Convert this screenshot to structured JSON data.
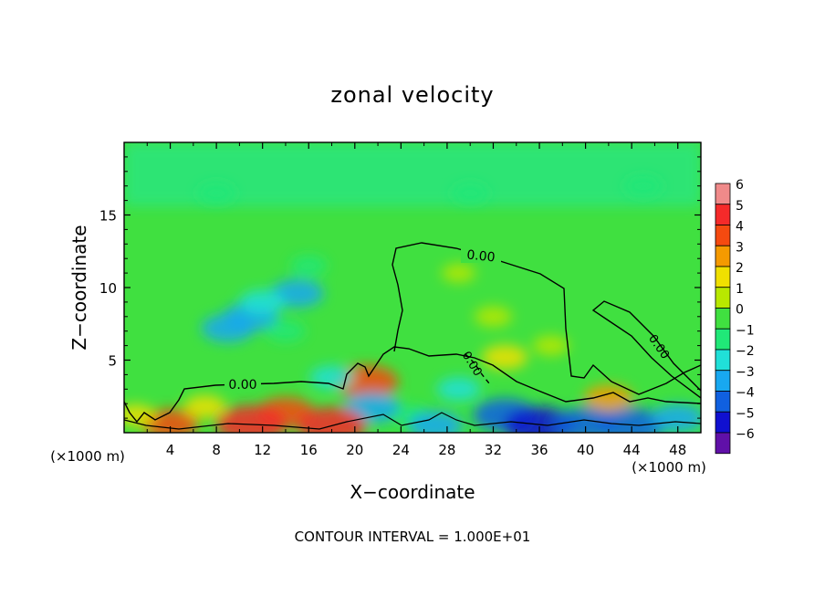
{
  "chart_data": {
    "type": "heatmap",
    "title": "zonal velocity",
    "xlabel": "X−coordinate",
    "ylabel": "Z−coordinate",
    "x_unit_left": "(×1000 m)",
    "x_unit_right": "(×1000 m)",
    "xlim": [
      0,
      50
    ],
    "ylim": [
      0,
      20
    ],
    "x_ticks": [
      4,
      8,
      12,
      16,
      20,
      24,
      28,
      32,
      36,
      40,
      44,
      48
    ],
    "x_tick_labels": [
      "4",
      "8",
      "12",
      "16",
      "20",
      "24",
      "28",
      "32",
      "36",
      "40",
      "44",
      "48"
    ],
    "y_ticks": [
      5,
      10,
      15
    ],
    "y_tick_labels": [
      "5",
      "10",
      "15"
    ],
    "colorbar": {
      "levels": [
        6,
        5,
        4,
        3,
        2,
        1,
        0,
        -1,
        -2,
        -3,
        -4,
        -5,
        -6
      ],
      "labels": [
        "6",
        "5",
        "4",
        "3",
        "2",
        "1",
        "0",
        "−1",
        "−2",
        "−3",
        "−4",
        "−5",
        "−6"
      ],
      "colors": [
        "#f08a8a",
        "#f52a2a",
        "#f54a10",
        "#f59a00",
        "#f0e000",
        "#b8e800",
        "#40e040",
        "#20e878",
        "#20e0d8",
        "#18a8f0",
        "#1060e0",
        "#1010d0",
        "#6010a8"
      ]
    },
    "contour_label_a": "0.00",
    "contour_label_b": "0.00",
    "contour_label_c": "0.00",
    "contour_label_d": "0.00",
    "contour_interval_text": "CONTOUR INTERVAL = 1.000E+01",
    "blobs": [
      {
        "x": 11,
        "z": 8,
        "value": -3.2
      },
      {
        "x": 15,
        "z": 9.6,
        "value": -3.0
      },
      {
        "x": 12,
        "z": 9,
        "value": -2.2
      },
      {
        "x": 9,
        "z": 7.2,
        "value": -3.0
      },
      {
        "x": 14,
        "z": 7,
        "value": -1.5
      },
      {
        "x": 16,
        "z": 11.5,
        "value": -1.2
      },
      {
        "x": 8,
        "z": 16.5,
        "value": -1.4
      },
      {
        "x": 30,
        "z": 16.5,
        "value": -1.2
      },
      {
        "x": 45,
        "z": 17,
        "value": -1.4
      },
      {
        "x": 33,
        "z": 5.2,
        "value": 2.2
      },
      {
        "x": 32,
        "z": 8,
        "value": 1.3
      },
      {
        "x": 37,
        "z": 6,
        "value": 1.2
      },
      {
        "x": 29,
        "z": 11,
        "value": 0.9
      },
      {
        "x": 21,
        "z": 3.5,
        "value": 4.2
      },
      {
        "x": 21.5,
        "z": 1.7,
        "value": -3.5
      },
      {
        "x": 29,
        "z": 3,
        "value": -2.0
      },
      {
        "x": 42,
        "z": 2.4,
        "value": 2.6
      },
      {
        "x": 25,
        "z": 1.2,
        "value": -1.2
      },
      {
        "x": 18,
        "z": 3.8,
        "value": -2.0
      },
      {
        "x": 14,
        "z": 1.4,
        "value": 3.5
      },
      {
        "x": 11,
        "z": 0.6,
        "value": 5.0
      },
      {
        "x": 4,
        "z": 0.6,
        "value": 3.5
      },
      {
        "x": 18,
        "z": 0.5,
        "value": 4.8
      },
      {
        "x": 33,
        "z": 1.2,
        "value": -4.2
      },
      {
        "x": 36,
        "z": 0.5,
        "value": -5.0
      },
      {
        "x": 44,
        "z": 0.5,
        "value": -4.5
      },
      {
        "x": 48,
        "z": 1.0,
        "value": -3.0
      },
      {
        "x": 27,
        "z": 0.5,
        "value": -3.2
      },
      {
        "x": 40,
        "z": 0.6,
        "value": -4.0
      },
      {
        "x": 7,
        "z": 1.8,
        "value": 1.8
      },
      {
        "x": 1,
        "z": 1.2,
        "value": 1.5
      }
    ]
  }
}
